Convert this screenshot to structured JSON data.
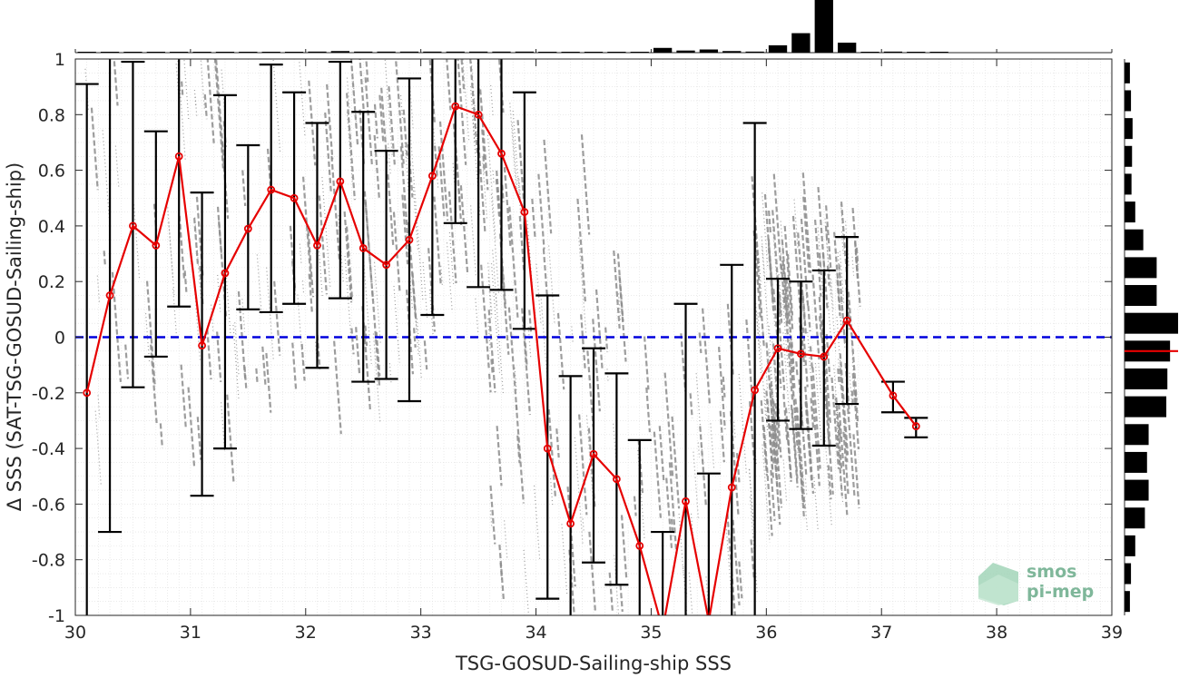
{
  "chart_data": {
    "type": "scatter",
    "xlabel": "TSG-GOSUD-Sailing-ship SSS",
    "ylabel": "Δ SSS (SAT-TSG-GOSUD-Sailing-ship)",
    "xlim": [
      30,
      39
    ],
    "ylim": [
      -1,
      1
    ],
    "x_ticks": [
      "30",
      "31",
      "32",
      "33",
      "34",
      "35",
      "36",
      "37",
      "38",
      "39"
    ],
    "y_ticks": [
      "1",
      "0.8",
      "0.6",
      "0.4",
      "0.2",
      "0",
      "-0.2",
      "-0.4",
      "-0.6",
      "-0.8",
      "-1"
    ],
    "grid": true,
    "reference_line": {
      "y": 0,
      "color": "#0000dd",
      "style": "dashed"
    },
    "mean_series": {
      "color": "#e60000",
      "x": [
        30.1,
        30.3,
        30.5,
        30.7,
        30.9,
        31.1,
        31.3,
        31.5,
        31.7,
        31.9,
        32.1,
        32.3,
        32.5,
        32.7,
        32.9,
        33.1,
        33.3,
        33.5,
        33.7,
        33.9,
        34.1,
        34.3,
        34.5,
        34.7,
        34.9,
        35.1,
        35.3,
        35.5,
        35.7,
        35.9,
        36.1,
        36.3,
        36.5,
        36.7,
        37.1,
        37.3
      ],
      "y": [
        -0.2,
        0.15,
        0.4,
        0.33,
        0.65,
        -0.03,
        0.23,
        0.39,
        0.53,
        0.5,
        0.33,
        0.56,
        0.32,
        0.26,
        0.35,
        0.58,
        0.83,
        0.8,
        0.66,
        0.45,
        -0.4,
        -0.67,
        -0.42,
        -0.51,
        -0.75,
        -1.05,
        -0.59,
        -1.02,
        -0.54,
        -0.19,
        -0.04,
        -0.06,
        -0.07,
        0.06,
        -0.21,
        -0.32
      ],
      "err_low": [
        -1.2,
        -0.7,
        -0.18,
        -0.07,
        0.11,
        -0.57,
        -0.4,
        0.1,
        0.09,
        0.12,
        -0.11,
        0.14,
        -0.16,
        -0.15,
        -0.23,
        0.08,
        0.41,
        0.18,
        0.17,
        0.03,
        -0.94,
        -1.2,
        -0.81,
        -0.89,
        -1.2,
        -1.2,
        -1.2,
        -1.2,
        -1.2,
        -1.2,
        -0.3,
        -0.33,
        -0.39,
        -0.24,
        -0.27,
        -0.36
      ],
      "err_high": [
        0.91,
        1.2,
        0.99,
        0.74,
        1.2,
        0.52,
        0.87,
        0.69,
        0.98,
        0.88,
        0.77,
        0.99,
        0.81,
        0.67,
        0.93,
        1.2,
        1.2,
        1.2,
        1.2,
        0.88,
        0.15,
        -0.14,
        -0.04,
        -0.13,
        -0.37,
        -0.7,
        0.12,
        -0.49,
        0.26,
        0.77,
        0.21,
        0.2,
        0.24,
        0.36,
        -0.16,
        -0.29
      ]
    },
    "scatter_color": "#8c8c8c",
    "top_histogram": {
      "bins_x": [
        30.1,
        30.3,
        30.5,
        30.7,
        30.9,
        31.1,
        31.3,
        31.5,
        31.7,
        31.9,
        32.1,
        32.3,
        32.5,
        32.7,
        32.9,
        33.1,
        33.3,
        33.5,
        33.7,
        33.9,
        34.1,
        34.3,
        34.5,
        34.7,
        34.9,
        35.1,
        35.3,
        35.5,
        35.7,
        35.9,
        36.1,
        36.3,
        36.5,
        36.7,
        36.9,
        37.1,
        37.3,
        37.5
      ],
      "counts": [
        0.01,
        0.01,
        0.01,
        0.01,
        0.01,
        0.01,
        0.01,
        0.01,
        0.01,
        0.015,
        0.02,
        0.03,
        0.02,
        0.02,
        0.02,
        0.02,
        0.02,
        0.02,
        0.02,
        0.02,
        0.01,
        0.01,
        0.01,
        0.01,
        0.01,
        0.09,
        0.04,
        0.06,
        0.03,
        0.02,
        0.14,
        0.37,
        1.0,
        0.19,
        0.01,
        0.02,
        0.01,
        0.005
      ]
    },
    "right_histogram": {
      "bins_y": [
        0.95,
        0.85,
        0.75,
        0.65,
        0.55,
        0.45,
        0.35,
        0.25,
        0.15,
        0.05,
        -0.05,
        -0.15,
        -0.25,
        -0.35,
        -0.45,
        -0.55,
        -0.65,
        -0.75,
        -0.85,
        -0.95
      ],
      "counts": [
        0.1,
        0.12,
        0.15,
        0.14,
        0.13,
        0.2,
        0.35,
        0.6,
        0.6,
        1.0,
        0.85,
        0.8,
        0.78,
        0.45,
        0.42,
        0.45,
        0.38,
        0.2,
        0.12,
        0.1
      ],
      "mean_marker": {
        "y": -0.05,
        "color": "#e60000"
      }
    }
  },
  "logo": {
    "line1": "smos",
    "line2": "pi-mep"
  }
}
